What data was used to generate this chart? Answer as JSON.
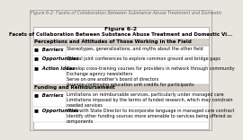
{
  "outer_title": "Figure 6-2: Facets of Collaboration Between Substance Abuse Treatment and Domestic",
  "fig_title_line1": "Figure 6-2",
  "fig_title_line2": "Facets of Collaboration Between Substance Abuse Treatment and Domestic Vi...",
  "section1_header": "Perceptions and Attitudes of Those Working in the Field",
  "section2_header": "Funding and Reimbursement",
  "rows": [
    {
      "bullet": "■  Barriers",
      "text": "Stereotypes, generalizations, and myths about the other field",
      "lines": 1,
      "section": 1
    },
    {
      "bullet": "■  Opportunities",
      "text": "Special joint conferences to explore common ground and bridge gaps",
      "lines": 1,
      "section": 1
    },
    {
      "bullet": "■  Action Ideas",
      "text": "Develop cross-training courses for providers in network through community\nExchange agency newsletters\nServe on one another's board of directors\nArrange continuing education unit credits for participants",
      "lines": 4,
      "section": 1
    },
    {
      "bullet": "■  Barriers",
      "text": "Limitations on reimbursable services, particularly under managed care\nLimitations imposed by the terms of funded research, which may constrain\nneeded services",
      "lines": 3,
      "section": 2
    },
    {
      "bullet": "■  Opportunities",
      "text": "Work with State Director to incorporate language in managed care contract\nIdentify other funding sources more amenable to services being offered as\ncomponents",
      "lines": 3,
      "section": 2
    }
  ],
  "bg_color": "#e8e4de",
  "inner_bg": "#f5f4f1",
  "border_color": "#999999",
  "section_header_bg": "#d4d0c8",
  "white": "#ffffff"
}
